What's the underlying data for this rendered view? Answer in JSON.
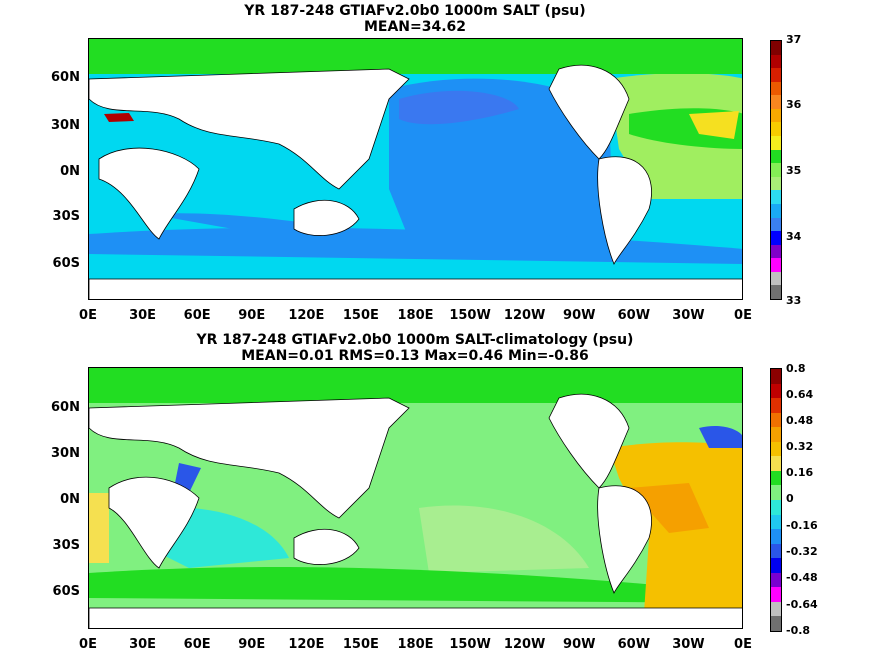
{
  "chart_data": [
    {
      "type": "heatmap",
      "title": "YR 187-248 GTIAFv2.0b0 1000m SALT (psu)",
      "subtitle": "MEAN=34.62",
      "x_ticks": [
        "0E",
        "30E",
        "60E",
        "90E",
        "120E",
        "150E",
        "180E",
        "150W",
        "120W",
        "90W",
        "60W",
        "30W",
        "0E"
      ],
      "y_ticks": [
        "60N",
        "30N",
        "0N",
        "30S",
        "60S"
      ],
      "colorbar": {
        "labels": [
          "37",
          "36",
          "35",
          "34",
          "33"
        ],
        "colors": [
          "#7f0000",
          "#b00000",
          "#d71f00",
          "#ec5a00",
          "#f8861f",
          "#f7a800",
          "#f7cc00",
          "#f5ef1e",
          "#22dd22",
          "#84ee55",
          "#a8ee77",
          "#2ddcf0",
          "#1aaaf5",
          "#3a80f0",
          "#0000ff",
          "#8000c8",
          "#ff00ff",
          "#bfbfbf",
          "#707070"
        ]
      },
      "regions_note_colors": {
        "ocean_main": "#00d8f0",
        "pacific": "#1e90f5",
        "atlantic_n": "#a0ee60",
        "atlantic_high": "#f5e020",
        "med": "#b00000",
        "indian": "#2bd7ef"
      }
    },
    {
      "type": "heatmap",
      "title": "YR 187-248 GTIAFv2.0b0 1000m SALT-climatology (psu)",
      "subtitle": "MEAN=0.01   RMS=0.13   Max=0.46   Min=-0.86",
      "x_ticks": [
        "0E",
        "30E",
        "60E",
        "90E",
        "120E",
        "150E",
        "180E",
        "150W",
        "120W",
        "90W",
        "60W",
        "30W",
        "0E"
      ],
      "y_ticks": [
        "60N",
        "30N",
        "0N",
        "30S",
        "60S"
      ],
      "colorbar": {
        "labels": [
          "0.8",
          "0.64",
          "0.48",
          "0.32",
          "0.16",
          "0",
          "-0.16",
          "-0.32",
          "-0.48",
          "-0.64",
          "-0.8"
        ],
        "colors": [
          "#8b0000",
          "#c00000",
          "#e03000",
          "#f07000",
          "#f5a000",
          "#f5c000",
          "#f5e050",
          "#22dd22",
          "#80f080",
          "#2ee8d8",
          "#20c8f0",
          "#1e90f5",
          "#2a56e8",
          "#0000f0",
          "#7a00d0",
          "#ff00ff",
          "#c0c0c0",
          "#707070"
        ]
      }
    }
  ]
}
